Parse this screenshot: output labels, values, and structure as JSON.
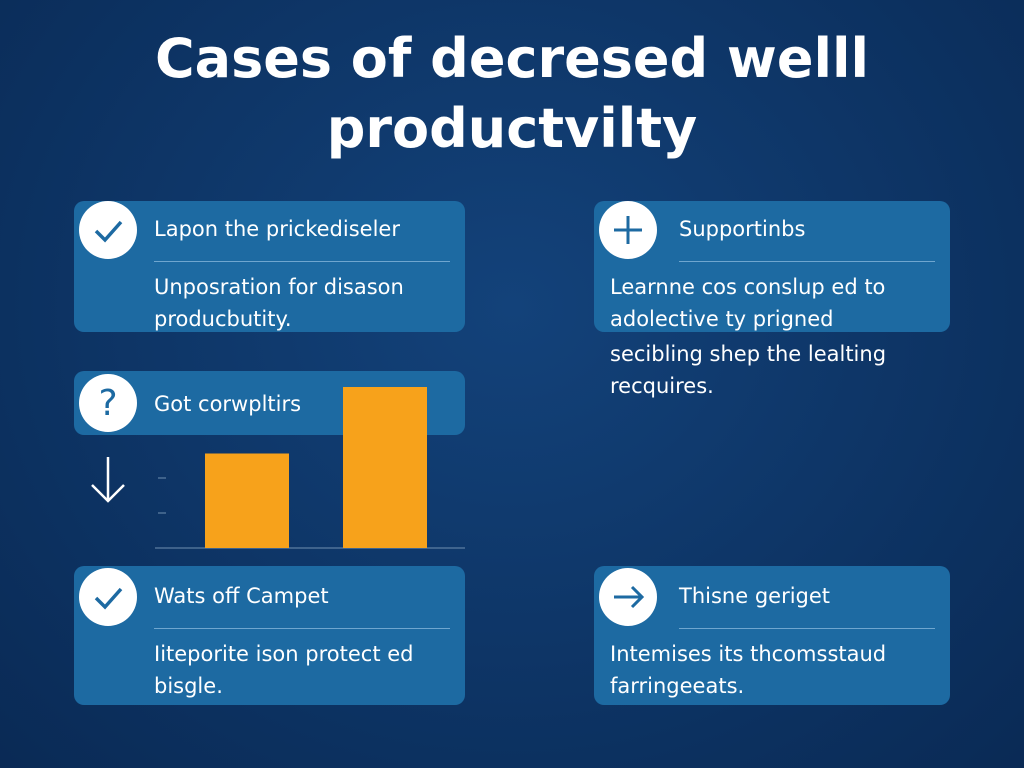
{
  "title": {
    "lines": [
      "Cases of decresed welll",
      "productvilty"
    ]
  },
  "cards": [
    {
      "heading": "Lapon the prickediseler",
      "body": [
        "Unposration for disason",
        "producbutity."
      ]
    },
    {
      "heading": "Supportinbs",
      "body": [
        "Learnne cos conslup ed to",
        "adolective ty prigned"
      ]
    },
    {
      "heading": "Got corwpltirs",
      "body": []
    },
    {
      "heading": "Wats off Campet",
      "body": [
        "Iiteporite ison protect ed",
        "bisgle."
      ]
    },
    {
      "heading": "Thisne geriget",
      "body": [
        "Intemises its thcomsstaud",
        "farringeeats."
      ]
    }
  ],
  "note": {
    "lines": [
      "secibling shep the lealting",
      "recquires."
    ]
  },
  "chart": {
    "type": "bar",
    "values": [
      2.7,
      4.6
    ],
    "color": "#f7a21b",
    "ylim": [
      0,
      4.7
    ],
    "yticks": [
      0,
      1,
      2
    ]
  }
}
